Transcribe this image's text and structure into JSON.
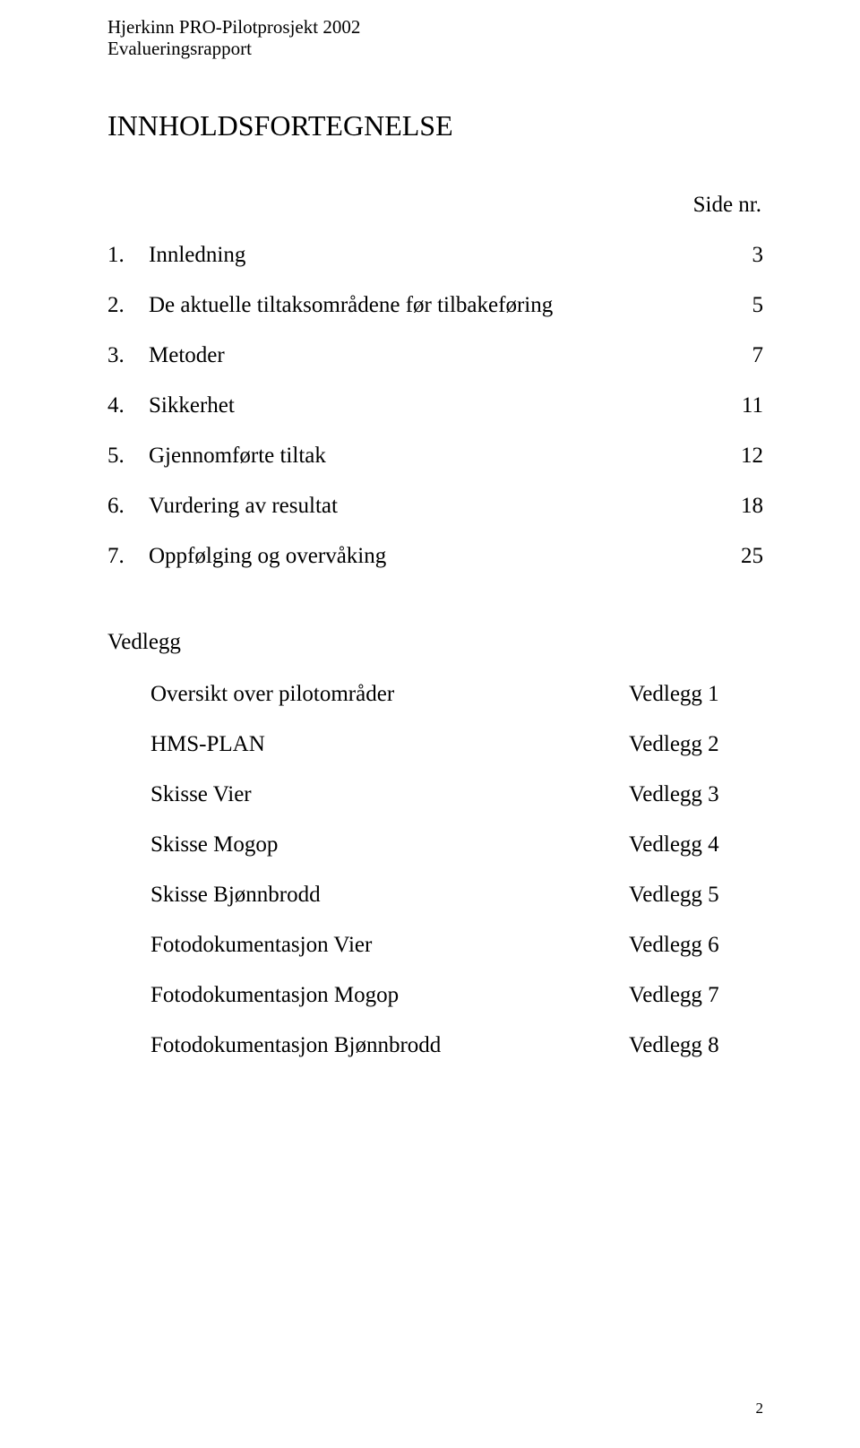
{
  "header": {
    "line1": "Hjerkinn PRO-Pilotprosjekt 2002",
    "line2": "Evalueringsrapport"
  },
  "title": "INNHOLDSFORTEGNELSE",
  "side_label": "Side nr.",
  "toc": [
    {
      "num": "1.",
      "label": "Innledning",
      "page": "3"
    },
    {
      "num": "2.",
      "label": "De aktuelle tiltaksområdene før tilbakeføring",
      "page": "5"
    },
    {
      "num": "3.",
      "label": "Metoder",
      "page": "7"
    },
    {
      "num": "4.",
      "label": "Sikkerhet",
      "page": "11"
    },
    {
      "num": "5.",
      "label": "Gjennomførte tiltak",
      "page": "12"
    },
    {
      "num": "6.",
      "label": "Vurdering av resultat",
      "page": "18"
    },
    {
      "num": "7.",
      "label": "Oppfølging og overvåking",
      "page": "25"
    }
  ],
  "vedlegg_title": "Vedlegg",
  "vedlegg": [
    {
      "label": "Oversikt over pilotområder",
      "ref": "Vedlegg 1"
    },
    {
      "label": "HMS-PLAN",
      "ref": "Vedlegg 2"
    },
    {
      "label": "Skisse Vier",
      "ref": "Vedlegg 3"
    },
    {
      "label": "Skisse Mogop",
      "ref": "Vedlegg 4"
    },
    {
      "label": "Skisse Bjønnbrodd",
      "ref": "Vedlegg 5"
    },
    {
      "label": "Fotodokumentasjon Vier",
      "ref": "Vedlegg 6"
    },
    {
      "label": "Fotodokumentasjon Mogop",
      "ref": "Vedlegg 7"
    },
    {
      "label": "Fotodokumentasjon Bjønnbrodd",
      "ref": "Vedlegg 8"
    }
  ],
  "page_number": "2",
  "colors": {
    "text": "#000000",
    "background": "#ffffff"
  },
  "typography": {
    "family": "Times New Roman",
    "header_fontsize_pt": 16,
    "title_fontsize_pt": 24,
    "body_fontsize_pt": 19,
    "pagenum_fontsize_pt": 13
  }
}
